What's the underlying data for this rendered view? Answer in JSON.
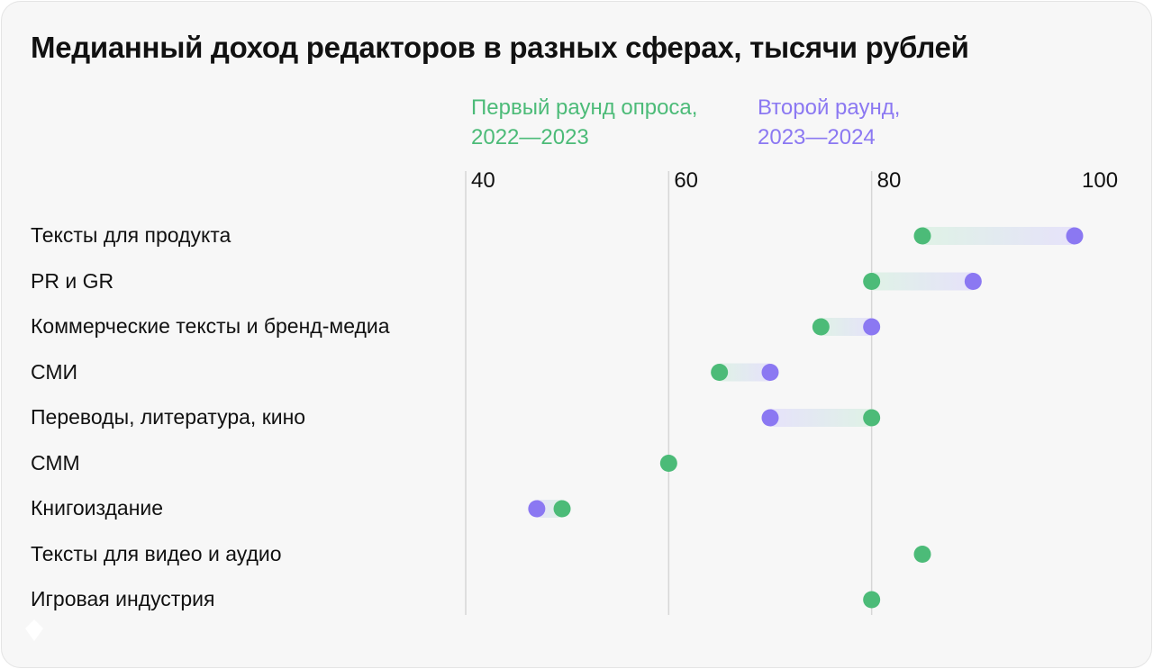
{
  "chart_data": {
    "type": "dumbbell",
    "title": "Медианный доход редакторов в разных сферах, тысячи рублей",
    "series": [
      {
        "name": "Первый раунд опроса, 2022—2023",
        "color": "#4cbb78"
      },
      {
        "name": "Второй раунд, 2023—2024",
        "color": "#8b78f2"
      }
    ],
    "xlim": [
      40,
      100
    ],
    "x_ticks": [
      "40",
      "60",
      "80",
      "100"
    ],
    "grid": true,
    "legend": "top",
    "categories": [
      "Тексты для продукта",
      "PR и GR",
      "Коммерческие тексты и бренд-медиа",
      "СМИ",
      "Переводы, литература, кино",
      "СММ",
      "Книгоиздание",
      "Тексты для видео и аудио",
      "Игровая индустрия"
    ],
    "first_round": [
      85,
      80,
      75,
      65,
      80,
      60,
      49.5,
      85,
      80
    ],
    "second_round": [
      100,
      90,
      80,
      70,
      70,
      null,
      47,
      null,
      null
    ]
  }
}
